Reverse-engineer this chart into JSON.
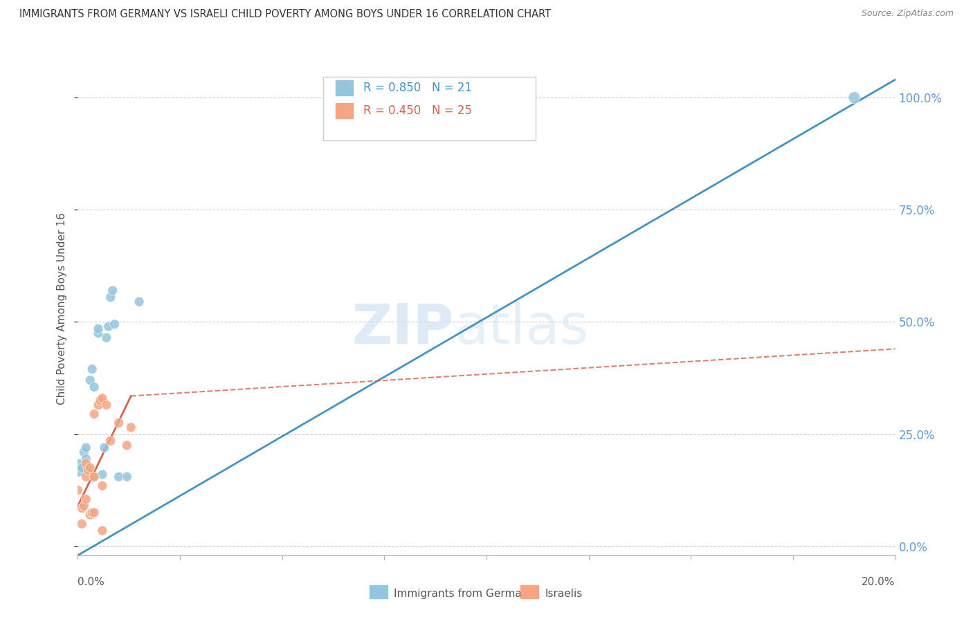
{
  "title": "IMMIGRANTS FROM GERMANY VS ISRAELI CHILD POVERTY AMONG BOYS UNDER 16 CORRELATION CHART",
  "source": "Source: ZipAtlas.com",
  "ylabel": "Child Poverty Among Boys Under 16",
  "ylabel_right_ticks": [
    "0.0%",
    "25.0%",
    "50.0%",
    "75.0%",
    "100.0%"
  ],
  "ylabel_right_vals": [
    0.0,
    0.25,
    0.5,
    0.75,
    1.0
  ],
  "legend1_R": "0.850",
  "legend1_N": "21",
  "legend2_R": "0.450",
  "legend2_N": "25",
  "color_blue": "#92c5de",
  "color_pink": "#f4a582",
  "line_blue": "#4393c3",
  "line_pink": "#d6604d",
  "blue_points": [
    [
      0.0,
      0.175
    ],
    [
      0.001,
      0.175
    ],
    [
      0.0015,
      0.21
    ],
    [
      0.002,
      0.195
    ],
    [
      0.002,
      0.22
    ],
    [
      0.003,
      0.37
    ],
    [
      0.0035,
      0.395
    ],
    [
      0.004,
      0.355
    ],
    [
      0.005,
      0.475
    ],
    [
      0.005,
      0.485
    ],
    [
      0.006,
      0.16
    ],
    [
      0.0065,
      0.22
    ],
    [
      0.007,
      0.465
    ],
    [
      0.0075,
      0.49
    ],
    [
      0.008,
      0.555
    ],
    [
      0.0085,
      0.57
    ],
    [
      0.009,
      0.495
    ],
    [
      0.01,
      0.155
    ],
    [
      0.012,
      0.155
    ],
    [
      0.015,
      0.545
    ],
    [
      0.19,
      1.0
    ]
  ],
  "blue_sizes": [
    350,
    100,
    100,
    100,
    100,
    100,
    100,
    100,
    100,
    100,
    100,
    100,
    100,
    100,
    100,
    100,
    100,
    100,
    100,
    100,
    150
  ],
  "pink_points": [
    [
      0.0,
      0.125
    ],
    [
      0.001,
      0.05
    ],
    [
      0.001,
      0.085
    ],
    [
      0.0015,
      0.09
    ],
    [
      0.002,
      0.185
    ],
    [
      0.002,
      0.105
    ],
    [
      0.002,
      0.155
    ],
    [
      0.0025,
      0.17
    ],
    [
      0.003,
      0.175
    ],
    [
      0.003,
      0.07
    ],
    [
      0.0035,
      0.075
    ],
    [
      0.004,
      0.155
    ],
    [
      0.004,
      0.155
    ],
    [
      0.004,
      0.075
    ],
    [
      0.004,
      0.295
    ],
    [
      0.005,
      0.315
    ],
    [
      0.0055,
      0.325
    ],
    [
      0.006,
      0.035
    ],
    [
      0.006,
      0.135
    ],
    [
      0.006,
      0.33
    ],
    [
      0.007,
      0.315
    ],
    [
      0.008,
      0.235
    ],
    [
      0.01,
      0.275
    ],
    [
      0.012,
      0.225
    ],
    [
      0.013,
      0.265
    ]
  ],
  "pink_sizes": [
    100,
    100,
    100,
    100,
    100,
    100,
    100,
    100,
    100,
    100,
    100,
    100,
    100,
    100,
    100,
    100,
    100,
    100,
    100,
    100,
    100,
    100,
    100,
    100,
    100
  ],
  "xlim": [
    0.0,
    0.2
  ],
  "ylim": [
    -0.02,
    1.08
  ],
  "blue_line": {
    "x0": 0.0,
    "y0": -0.02,
    "x1": 0.2,
    "y1": 1.04
  },
  "pink_line_solid": {
    "x0": 0.0,
    "y0": 0.09,
    "x1": 0.013,
    "y1": 0.335
  },
  "pink_line_dashed": {
    "x0": 0.013,
    "y0": 0.335,
    "x1": 0.2,
    "y1": 0.44
  }
}
